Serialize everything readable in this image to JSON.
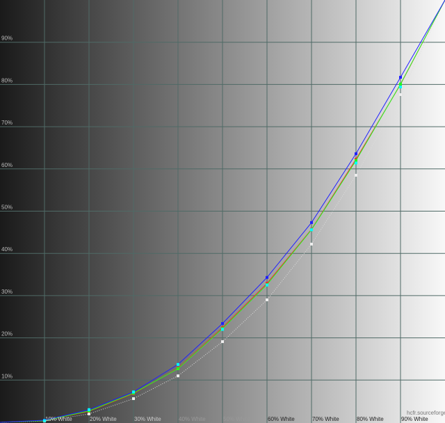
{
  "chart_data": {
    "type": "line",
    "title": "",
    "xlabel": "",
    "ylabel": "",
    "xlim": [
      0,
      100
    ],
    "ylim": [
      0,
      100
    ],
    "grid": true,
    "x": [
      0,
      10,
      20,
      30,
      40,
      50,
      60,
      70,
      80,
      90,
      100
    ],
    "x_tick_labels": [
      "10% White",
      "20% White",
      "30% White",
      "40% White",
      "50% White",
      "60% White",
      "70% White",
      "80% White",
      "90% White"
    ],
    "y_tick_labels": [
      "10%",
      "20%",
      "30%",
      "40%",
      "50%",
      "60%",
      "70%",
      "80%",
      "90%"
    ],
    "watermark": "hcfr.sourceforge.net",
    "series": [
      {
        "color": "#ffffff",
        "style": "dotted",
        "values": [
          0,
          0.3,
          2.0,
          5.6,
          11.0,
          19.1,
          29.0,
          42.2,
          58.5,
          77.6,
          100
        ]
      },
      {
        "color": "#ff2020",
        "style": "solid",
        "values": [
          0,
          0.4,
          2.6,
          6.8,
          12.8,
          22.4,
          32.9,
          45.7,
          62.3,
          80.0,
          100
        ]
      },
      {
        "color": "#20ff20",
        "style": "solid",
        "values": [
          0,
          0.4,
          2.7,
          6.9,
          12.7,
          22.2,
          32.6,
          45.6,
          62.0,
          80.1,
          100
        ]
      },
      {
        "color": "#2020ff",
        "style": "solid",
        "values": [
          0,
          0.5,
          3.0,
          7.2,
          13.7,
          23.4,
          34.3,
          47.3,
          63.6,
          81.7,
          100
        ]
      },
      {
        "color": "#00ffff",
        "style": "markers",
        "values": [
          0,
          0.4,
          3.0,
          7.2,
          13.7,
          22.0,
          32.5,
          45.6,
          61.4,
          79.4,
          100
        ]
      }
    ]
  }
}
